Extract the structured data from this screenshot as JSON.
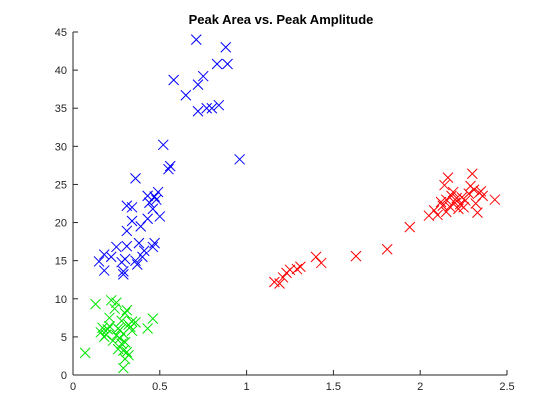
{
  "chart_data": {
    "type": "scatter",
    "title": "Peak Area vs. Peak Amplitude",
    "xlabel": "",
    "ylabel": "",
    "xlim": [
      0,
      2.5
    ],
    "ylim": [
      0,
      45
    ],
    "xticks": [
      0,
      0.5,
      1,
      1.5,
      2,
      2.5
    ],
    "xtick_labels": [
      "0",
      "0.5",
      "1",
      "1.5",
      "2",
      "2.5"
    ],
    "yticks": [
      0,
      5,
      10,
      15,
      20,
      25,
      30,
      35,
      40,
      45
    ],
    "ytick_labels": [
      "0",
      "5",
      "10",
      "15",
      "20",
      "25",
      "30",
      "35",
      "40",
      "45"
    ],
    "grid": false,
    "marker": "x",
    "series": [
      {
        "color": "#0000ff",
        "points": [
          [
            0.15,
            14.9
          ],
          [
            0.18,
            15.8
          ],
          [
            0.18,
            13.7
          ],
          [
            0.22,
            15.5
          ],
          [
            0.25,
            16.8
          ],
          [
            0.28,
            14.8
          ],
          [
            0.29,
            13.6
          ],
          [
            0.29,
            13.2
          ],
          [
            0.3,
            15.2
          ],
          [
            0.31,
            16.9
          ],
          [
            0.31,
            18.9
          ],
          [
            0.31,
            22.2
          ],
          [
            0.34,
            22.0
          ],
          [
            0.34,
            20.2
          ],
          [
            0.36,
            15.0
          ],
          [
            0.36,
            25.8
          ],
          [
            0.37,
            14.5
          ],
          [
            0.38,
            17.3
          ],
          [
            0.39,
            19.5
          ],
          [
            0.4,
            15.5
          ],
          [
            0.41,
            16.3
          ],
          [
            0.43,
            20.5
          ],
          [
            0.43,
            23.5
          ],
          [
            0.44,
            22.6
          ],
          [
            0.46,
            16.8
          ],
          [
            0.46,
            21.8
          ],
          [
            0.47,
            17.3
          ],
          [
            0.47,
            23.4
          ],
          [
            0.48,
            23.0
          ],
          [
            0.49,
            24.0
          ],
          [
            0.5,
            20.8
          ],
          [
            0.52,
            30.2
          ],
          [
            0.55,
            27.0
          ],
          [
            0.56,
            27.4
          ],
          [
            0.58,
            38.7
          ],
          [
            0.65,
            36.7
          ],
          [
            0.71,
            44.0
          ],
          [
            0.72,
            38.1
          ],
          [
            0.72,
            34.6
          ],
          [
            0.75,
            39.2
          ],
          [
            0.77,
            35.0
          ],
          [
            0.8,
            35.0
          ],
          [
            0.83,
            40.8
          ],
          [
            0.84,
            35.4
          ],
          [
            0.88,
            43.0
          ],
          [
            0.89,
            40.8
          ],
          [
            0.96,
            28.3
          ]
        ]
      },
      {
        "color": "#00e600",
        "points": [
          [
            0.07,
            2.9
          ],
          [
            0.13,
            9.3
          ],
          [
            0.16,
            5.6
          ],
          [
            0.17,
            6.2
          ],
          [
            0.18,
            5.0
          ],
          [
            0.19,
            5.3
          ],
          [
            0.2,
            6.0
          ],
          [
            0.21,
            7.5
          ],
          [
            0.21,
            6.4
          ],
          [
            0.22,
            9.8
          ],
          [
            0.23,
            4.5
          ],
          [
            0.24,
            8.7
          ],
          [
            0.25,
            9.5
          ],
          [
            0.25,
            5.2
          ],
          [
            0.26,
            6.1
          ],
          [
            0.26,
            3.4
          ],
          [
            0.27,
            4.8
          ],
          [
            0.27,
            5.9
          ],
          [
            0.28,
            4.1
          ],
          [
            0.28,
            7.1
          ],
          [
            0.29,
            3.2
          ],
          [
            0.29,
            5.4
          ],
          [
            0.3,
            4.3
          ],
          [
            0.3,
            8.1
          ],
          [
            0.31,
            8.5
          ],
          [
            0.31,
            3.0
          ],
          [
            0.32,
            6.6
          ],
          [
            0.32,
            2.6
          ],
          [
            0.33,
            6.3
          ],
          [
            0.34,
            5.8
          ],
          [
            0.34,
            7.0
          ],
          [
            0.29,
            0.9
          ],
          [
            0.3,
            2.1
          ],
          [
            0.36,
            6.9
          ],
          [
            0.43,
            6.1
          ],
          [
            0.46,
            7.4
          ]
        ]
      },
      {
        "color": "#ff0000",
        "points": [
          [
            1.16,
            12.2
          ],
          [
            1.19,
            12.0
          ],
          [
            1.21,
            12.8
          ],
          [
            1.23,
            13.4
          ],
          [
            1.25,
            13.8
          ],
          [
            1.29,
            13.9
          ],
          [
            1.31,
            14.2
          ],
          [
            1.4,
            15.5
          ],
          [
            1.43,
            14.7
          ],
          [
            1.63,
            15.6
          ],
          [
            1.81,
            16.5
          ],
          [
            1.94,
            19.4
          ],
          [
            2.05,
            20.9
          ],
          [
            2.08,
            21.6
          ],
          [
            2.1,
            21.0
          ],
          [
            2.12,
            22.7
          ],
          [
            2.13,
            22.2
          ],
          [
            2.14,
            24.9
          ],
          [
            2.15,
            23.0
          ],
          [
            2.15,
            21.4
          ],
          [
            2.16,
            25.9
          ],
          [
            2.17,
            22.1
          ],
          [
            2.18,
            23.5
          ],
          [
            2.19,
            24.0
          ],
          [
            2.2,
            22.6
          ],
          [
            2.21,
            23.2
          ],
          [
            2.22,
            21.8
          ],
          [
            2.23,
            22.4
          ],
          [
            2.24,
            23.3
          ],
          [
            2.25,
            22.0
          ],
          [
            2.26,
            22.9
          ],
          [
            2.28,
            23.8
          ],
          [
            2.29,
            24.8
          ],
          [
            2.3,
            26.4
          ],
          [
            2.31,
            24.3
          ],
          [
            2.32,
            22.5
          ],
          [
            2.33,
            21.3
          ],
          [
            2.34,
            23.9
          ],
          [
            2.35,
            24.1
          ],
          [
            2.36,
            23.5
          ],
          [
            2.43,
            23.0
          ]
        ]
      }
    ]
  }
}
